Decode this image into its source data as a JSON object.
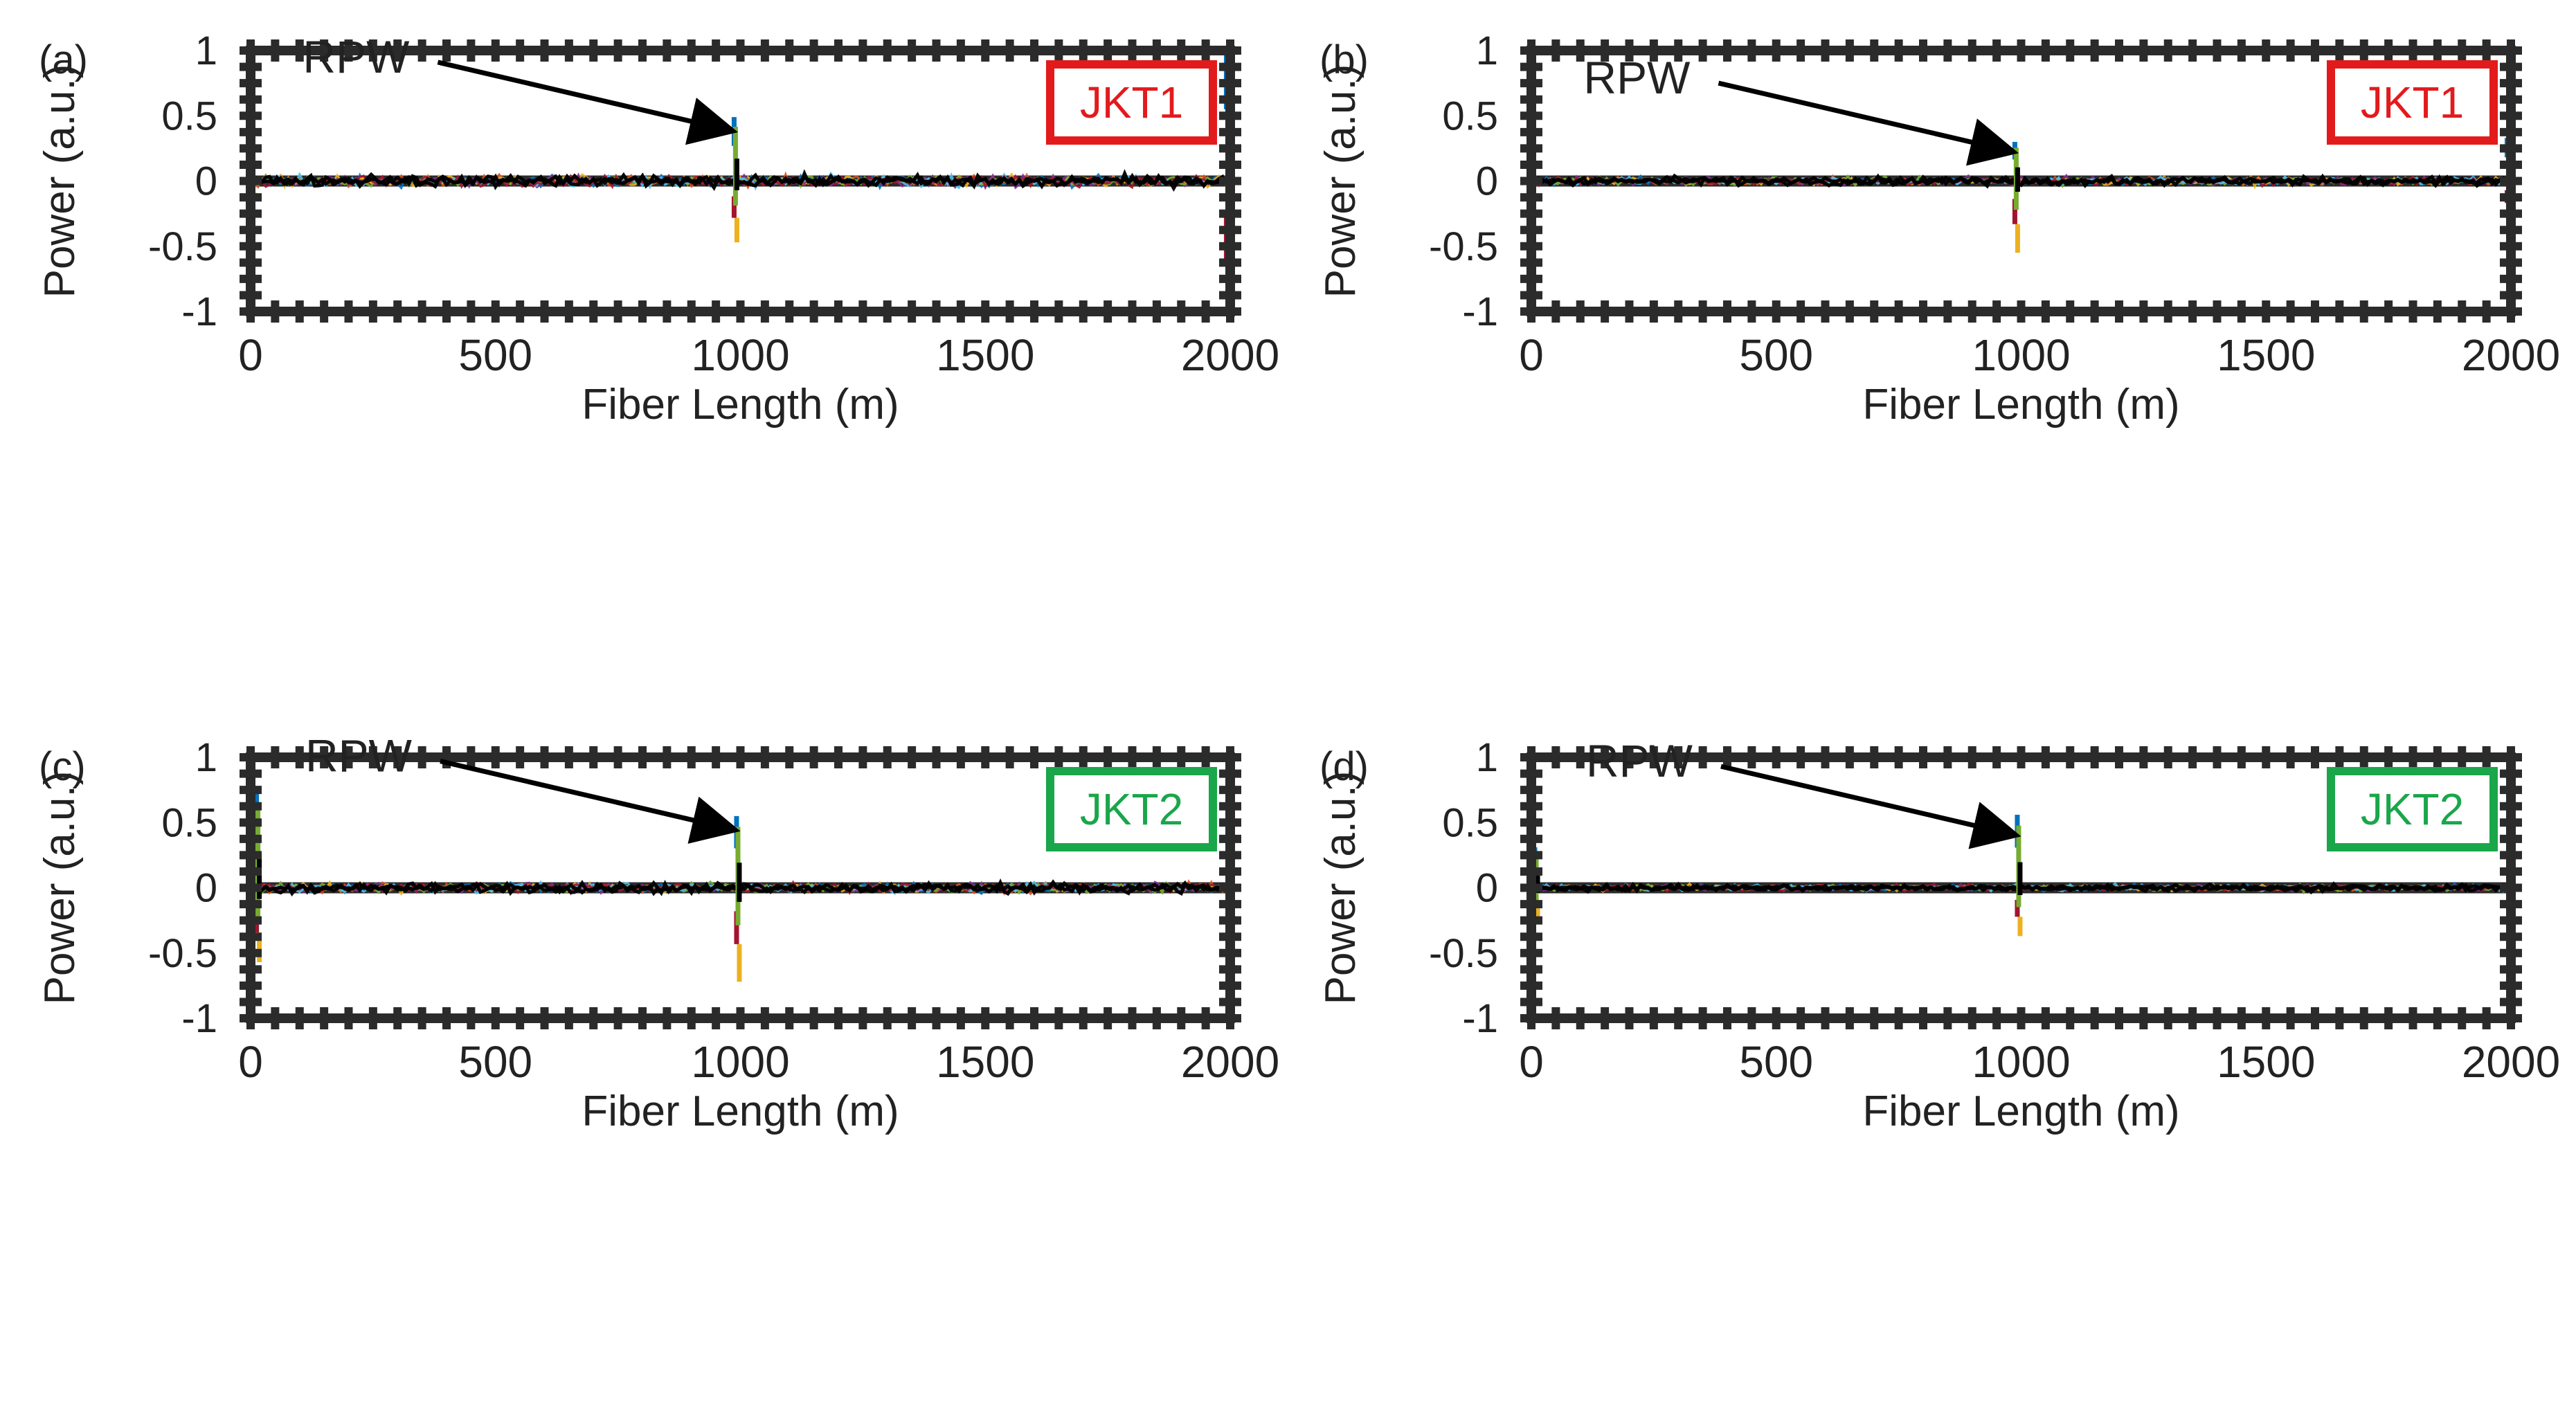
{
  "chart_data": [
    {
      "type": "line",
      "panel_label": "(a)",
      "badge": "JKT1",
      "badge_color": "#e31a1c",
      "annotation": "RPW",
      "xlabel": "Fiber Length (m)",
      "ylabel": "Power (a.u.)",
      "xlim": [
        0,
        2000
      ],
      "ylim": [
        -1,
        1
      ],
      "xticks": [
        "0",
        "500",
        "1000",
        "1500",
        "2000"
      ],
      "yticks": [
        "1",
        "0.5",
        "0",
        "-0.5",
        "-1"
      ],
      "noise_amplitude": 0.07,
      "arrow_target": {
        "x": 990,
        "y": 0.38
      },
      "events": [
        {
          "x": 990,
          "max": 0.49,
          "min": -0.47
        },
        {
          "x": 1995,
          "max": 1.0,
          "min": -1.0
        },
        {
          "x": 5,
          "max": 0.1,
          "min": -0.15
        }
      ]
    },
    {
      "type": "line",
      "panel_label": "(b)",
      "badge": "JKT1",
      "badge_color": "#e31a1c",
      "annotation": "RPW",
      "xlabel": "Fiber Length (m)",
      "ylabel": "Power (a.u.)",
      "xlim": [
        0,
        2000
      ],
      "ylim": [
        -1,
        1
      ],
      "xticks": [
        "0",
        "500",
        "1000",
        "1500",
        "2000"
      ],
      "yticks": [
        "1",
        "0.5",
        "0",
        "-0.5",
        "-1"
      ],
      "noise_amplitude": 0.05,
      "arrow_target": {
        "x": 990,
        "y": 0.22
      },
      "events": [
        {
          "x": 990,
          "max": 0.3,
          "min": -0.55
        },
        {
          "x": 1995,
          "max": 0.33,
          "min": -0.28
        }
      ]
    },
    {
      "type": "line",
      "panel_label": "(c)",
      "badge": "JKT2",
      "badge_color": "#1aa64a",
      "annotation": "RPW",
      "xlabel": "Fiber Length (m)",
      "ylabel": "Power (a.u.)",
      "xlim": [
        0,
        2000
      ],
      "ylim": [
        -1,
        1
      ],
      "xticks": [
        "0",
        "500",
        "1000",
        "1500",
        "2000"
      ],
      "yticks": [
        "1",
        "0.5",
        "0",
        "-0.5",
        "-1"
      ],
      "noise_amplitude": 0.06,
      "arrow_target": {
        "x": 995,
        "y": 0.44
      },
      "events": [
        {
          "x": 995,
          "max": 0.55,
          "min": -0.72
        },
        {
          "x": 15,
          "max": 0.74,
          "min": -0.57
        }
      ]
    },
    {
      "type": "line",
      "panel_label": "(d)",
      "badge": "JKT2",
      "badge_color": "#1aa64a",
      "annotation": "RPW",
      "xlabel": "Fiber Length (m)",
      "ylabel": "Power (a.u.)",
      "xlim": [
        0,
        2000
      ],
      "ylim": [
        -1,
        1
      ],
      "xticks": [
        "0",
        "500",
        "1000",
        "1500",
        "2000"
      ],
      "yticks": [
        "1",
        "0.5",
        "0",
        "-0.5",
        "-1"
      ],
      "noise_amplitude": 0.04,
      "arrow_target": {
        "x": 995,
        "y": 0.4
      },
      "events": [
        {
          "x": 995,
          "max": 0.56,
          "min": -0.37
        },
        {
          "x": 10,
          "max": 0.31,
          "min": -0.26
        }
      ]
    }
  ],
  "colors": {
    "axis": "#2b2b2b",
    "series": [
      "#0072bd",
      "#d95319",
      "#edb120",
      "#7e2f8e",
      "#77ac30",
      "#4dbeee",
      "#a2142f"
    ],
    "overlay": "#000000"
  }
}
